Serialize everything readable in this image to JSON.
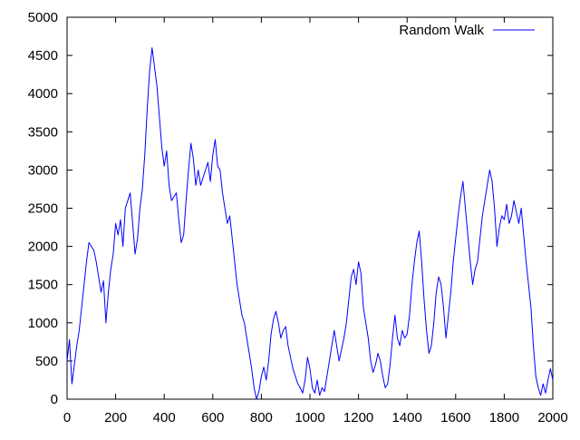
{
  "chart_data": {
    "type": "line",
    "title": "",
    "xlabel": "",
    "ylabel": "",
    "xlim": [
      0,
      2000
    ],
    "ylim": [
      0,
      5000
    ],
    "x_ticks": [
      0,
      200,
      400,
      600,
      800,
      1000,
      1200,
      1400,
      1600,
      1800,
      2000
    ],
    "y_ticks": [
      0,
      500,
      1000,
      1500,
      2000,
      2500,
      3000,
      3500,
      4000,
      4500,
      5000
    ],
    "grid": false,
    "legend_position": "top-right",
    "series": [
      {
        "name": "Random Walk",
        "color": "#0000ff",
        "points": [
          [
            0,
            500
          ],
          [
            10,
            780
          ],
          [
            20,
            200
          ],
          [
            30,
            450
          ],
          [
            40,
            700
          ],
          [
            50,
            900
          ],
          [
            60,
            1200
          ],
          [
            70,
            1500
          ],
          [
            80,
            1800
          ],
          [
            90,
            2050
          ],
          [
            100,
            2000
          ],
          [
            110,
            1950
          ],
          [
            120,
            1800
          ],
          [
            130,
            1600
          ],
          [
            140,
            1400
          ],
          [
            150,
            1550
          ],
          [
            160,
            1000
          ],
          [
            170,
            1400
          ],
          [
            180,
            1700
          ],
          [
            190,
            1900
          ],
          [
            200,
            2300
          ],
          [
            210,
            2150
          ],
          [
            220,
            2350
          ],
          [
            230,
            2000
          ],
          [
            240,
            2500
          ],
          [
            250,
            2600
          ],
          [
            260,
            2700
          ],
          [
            270,
            2300
          ],
          [
            280,
            1900
          ],
          [
            290,
            2100
          ],
          [
            300,
            2500
          ],
          [
            310,
            2750
          ],
          [
            320,
            3200
          ],
          [
            330,
            3800
          ],
          [
            340,
            4300
          ],
          [
            350,
            4600
          ],
          [
            360,
            4350
          ],
          [
            370,
            4100
          ],
          [
            380,
            3700
          ],
          [
            390,
            3300
          ],
          [
            400,
            3050
          ],
          [
            410,
            3250
          ],
          [
            420,
            2800
          ],
          [
            430,
            2600
          ],
          [
            440,
            2650
          ],
          [
            450,
            2700
          ],
          [
            460,
            2350
          ],
          [
            470,
            2050
          ],
          [
            480,
            2150
          ],
          [
            490,
            2600
          ],
          [
            500,
            3000
          ],
          [
            510,
            3350
          ],
          [
            520,
            3150
          ],
          [
            530,
            2800
          ],
          [
            540,
            3000
          ],
          [
            550,
            2800
          ],
          [
            560,
            2900
          ],
          [
            570,
            3000
          ],
          [
            580,
            3100
          ],
          [
            590,
            2850
          ],
          [
            600,
            3200
          ],
          [
            610,
            3400
          ],
          [
            620,
            3050
          ],
          [
            630,
            3000
          ],
          [
            640,
            2700
          ],
          [
            650,
            2500
          ],
          [
            660,
            2300
          ],
          [
            670,
            2400
          ],
          [
            680,
            2100
          ],
          [
            690,
            1800
          ],
          [
            700,
            1500
          ],
          [
            710,
            1300
          ],
          [
            720,
            1100
          ],
          [
            730,
            1000
          ],
          [
            740,
            800
          ],
          [
            750,
            600
          ],
          [
            760,
            400
          ],
          [
            770,
            150
          ],
          [
            780,
            0
          ],
          [
            790,
            100
          ],
          [
            800,
            300
          ],
          [
            810,
            420
          ],
          [
            820,
            250
          ],
          [
            830,
            500
          ],
          [
            840,
            850
          ],
          [
            850,
            1050
          ],
          [
            860,
            1150
          ],
          [
            870,
            1000
          ],
          [
            880,
            800
          ],
          [
            890,
            900
          ],
          [
            900,
            950
          ],
          [
            910,
            700
          ],
          [
            920,
            550
          ],
          [
            930,
            400
          ],
          [
            940,
            300
          ],
          [
            950,
            200
          ],
          [
            960,
            150
          ],
          [
            970,
            80
          ],
          [
            980,
            250
          ],
          [
            990,
            550
          ],
          [
            1000,
            400
          ],
          [
            1010,
            150
          ],
          [
            1020,
            80
          ],
          [
            1030,
            250
          ],
          [
            1040,
            50
          ],
          [
            1050,
            150
          ],
          [
            1060,
            100
          ],
          [
            1070,
            300
          ],
          [
            1080,
            500
          ],
          [
            1090,
            700
          ],
          [
            1100,
            900
          ],
          [
            1110,
            700
          ],
          [
            1120,
            500
          ],
          [
            1130,
            650
          ],
          [
            1140,
            800
          ],
          [
            1150,
            1000
          ],
          [
            1160,
            1300
          ],
          [
            1170,
            1600
          ],
          [
            1180,
            1700
          ],
          [
            1190,
            1500
          ],
          [
            1200,
            1800
          ],
          [
            1210,
            1650
          ],
          [
            1220,
            1200
          ],
          [
            1230,
            1000
          ],
          [
            1240,
            800
          ],
          [
            1250,
            500
          ],
          [
            1260,
            350
          ],
          [
            1270,
            450
          ],
          [
            1280,
            600
          ],
          [
            1290,
            500
          ],
          [
            1300,
            300
          ],
          [
            1310,
            150
          ],
          [
            1320,
            200
          ],
          [
            1330,
            450
          ],
          [
            1340,
            800
          ],
          [
            1350,
            1100
          ],
          [
            1360,
            800
          ],
          [
            1370,
            700
          ],
          [
            1380,
            900
          ],
          [
            1390,
            800
          ],
          [
            1400,
            850
          ],
          [
            1410,
            1100
          ],
          [
            1420,
            1500
          ],
          [
            1430,
            1800
          ],
          [
            1440,
            2050
          ],
          [
            1450,
            2200
          ],
          [
            1460,
            1800
          ],
          [
            1470,
            1300
          ],
          [
            1480,
            900
          ],
          [
            1490,
            600
          ],
          [
            1500,
            700
          ],
          [
            1510,
            1000
          ],
          [
            1520,
            1400
          ],
          [
            1530,
            1600
          ],
          [
            1540,
            1500
          ],
          [
            1550,
            1200
          ],
          [
            1560,
            800
          ],
          [
            1570,
            1100
          ],
          [
            1580,
            1400
          ],
          [
            1590,
            1800
          ],
          [
            1600,
            2100
          ],
          [
            1610,
            2400
          ],
          [
            1620,
            2650
          ],
          [
            1630,
            2850
          ],
          [
            1640,
            2500
          ],
          [
            1650,
            2150
          ],
          [
            1660,
            1800
          ],
          [
            1670,
            1500
          ],
          [
            1680,
            1700
          ],
          [
            1690,
            1800
          ],
          [
            1700,
            2100
          ],
          [
            1710,
            2400
          ],
          [
            1720,
            2600
          ],
          [
            1730,
            2800
          ],
          [
            1740,
            3000
          ],
          [
            1750,
            2850
          ],
          [
            1760,
            2500
          ],
          [
            1770,
            2000
          ],
          [
            1780,
            2250
          ],
          [
            1790,
            2400
          ],
          [
            1800,
            2350
          ],
          [
            1810,
            2550
          ],
          [
            1820,
            2300
          ],
          [
            1830,
            2400
          ],
          [
            1840,
            2600
          ],
          [
            1850,
            2450
          ],
          [
            1860,
            2300
          ],
          [
            1870,
            2500
          ],
          [
            1880,
            2150
          ],
          [
            1890,
            1800
          ],
          [
            1900,
            1500
          ],
          [
            1910,
            1200
          ],
          [
            1920,
            700
          ],
          [
            1930,
            300
          ],
          [
            1940,
            150
          ],
          [
            1950,
            50
          ],
          [
            1960,
            200
          ],
          [
            1970,
            80
          ],
          [
            1980,
            250
          ],
          [
            1990,
            400
          ],
          [
            2000,
            250
          ]
        ]
      }
    ]
  }
}
